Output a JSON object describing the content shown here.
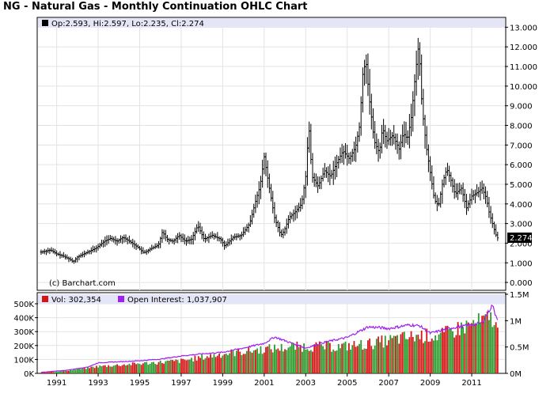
{
  "title": "NG - Natural Gas - Monthly Continuation OHLC Chart",
  "price_info": "Op:2.593, Hi:2.597, Lo:2.235, Cl:2.274",
  "last_close_label": "2.274",
  "credit": "(c) Barchart.com",
  "volume_info": "Vol: 302,354",
  "oi_info": "Open Interest: 1,037,907",
  "colors": {
    "background": "#ffffff",
    "info_bar": "#e4e6f8",
    "grid": "#e3e3e3",
    "price_bar": "#000000",
    "volume_up": "#2a9a2a",
    "volume_down": "#d21515",
    "open_interest": "#a020f0",
    "vol_marker": "#d21515",
    "oi_marker": "#a020f0"
  },
  "chart_data": [
    {
      "type": "ohlc",
      "title": "NG - Natural Gas - Monthly Continuation OHLC Chart",
      "y_ticks": [
        "0.000",
        "1.000",
        "2.000",
        "3.000",
        "4.000",
        "5.000",
        "6.000",
        "7.000",
        "8.000",
        "9.000",
        "10.000",
        "11.000",
        "12.000",
        "13.000"
      ],
      "ylim": [
        -0.4,
        13.5
      ],
      "x_ticks": [
        "1991",
        "1993",
        "1995",
        "1997",
        "1999",
        "2001",
        "2003",
        "2005",
        "2007",
        "2009",
        "2011"
      ],
      "xlim": [
        1990.1,
        2012.6
      ],
      "last_close": 2.274,
      "grid": true,
      "series": [
        {
          "anchors_year_close": [
            [
              1990.25,
              1.55
            ],
            [
              1990.7,
              1.65
            ],
            [
              1991.0,
              1.45
            ],
            [
              1991.3,
              1.35
            ],
            [
              1991.6,
              1.2
            ],
            [
              1991.8,
              1.05
            ],
            [
              1992.0,
              1.3
            ],
            [
              1992.5,
              1.55
            ],
            [
              1992.9,
              1.75
            ],
            [
              1993.3,
              2.1
            ],
            [
              1993.6,
              2.25
            ],
            [
              1993.9,
              2.1
            ],
            [
              1994.2,
              2.3
            ],
            [
              1994.5,
              2.1
            ],
            [
              1994.9,
              1.8
            ],
            [
              1995.2,
              1.5
            ],
            [
              1995.5,
              1.7
            ],
            [
              1995.9,
              1.9
            ],
            [
              1996.1,
              2.6
            ],
            [
              1996.3,
              2.2
            ],
            [
              1996.6,
              2.1
            ],
            [
              1996.9,
              2.4
            ],
            [
              1997.2,
              2.1
            ],
            [
              1997.5,
              2.2
            ],
            [
              1997.8,
              2.9
            ],
            [
              1998.1,
              2.2
            ],
            [
              1998.5,
              2.4
            ],
            [
              1998.9,
              2.2
            ],
            [
              1999.1,
              1.85
            ],
            [
              1999.5,
              2.3
            ],
            [
              1999.9,
              2.4
            ],
            [
              2000.3,
              3.0
            ],
            [
              2000.6,
              4.2
            ],
            [
              2000.8,
              4.9
            ],
            [
              2001.0,
              6.4
            ],
            [
              2001.2,
              5.1
            ],
            [
              2001.5,
              3.3
            ],
            [
              2001.8,
              2.4
            ],
            [
              2001.95,
              2.6
            ],
            [
              2002.2,
              3.3
            ],
            [
              2002.5,
              3.6
            ],
            [
              2002.8,
              4.0
            ],
            [
              2003.0,
              5.4
            ],
            [
              2003.15,
              8.0
            ],
            [
              2003.3,
              5.4
            ],
            [
              2003.6,
              4.9
            ],
            [
              2003.9,
              5.7
            ],
            [
              2004.2,
              5.4
            ],
            [
              2004.5,
              6.1
            ],
            [
              2004.8,
              6.7
            ],
            [
              2005.1,
              6.3
            ],
            [
              2005.4,
              6.9
            ],
            [
              2005.6,
              8.0
            ],
            [
              2005.75,
              10.6
            ],
            [
              2005.9,
              11.3
            ],
            [
              2006.05,
              9.5
            ],
            [
              2006.3,
              7.2
            ],
            [
              2006.55,
              6.6
            ],
            [
              2006.7,
              7.9
            ],
            [
              2006.9,
              7.2
            ],
            [
              2007.2,
              7.5
            ],
            [
              2007.5,
              6.8
            ],
            [
              2007.7,
              7.6
            ],
            [
              2007.9,
              7.3
            ],
            [
              2008.1,
              8.5
            ],
            [
              2008.3,
              10.8
            ],
            [
              2008.45,
              12.2
            ],
            [
              2008.6,
              9.0
            ],
            [
              2008.8,
              7.0
            ],
            [
              2009.0,
              5.6
            ],
            [
              2009.2,
              4.2
            ],
            [
              2009.4,
              3.9
            ],
            [
              2009.6,
              5.1
            ],
            [
              2009.8,
              5.8
            ],
            [
              2010.0,
              5.2
            ],
            [
              2010.2,
              4.5
            ],
            [
              2010.5,
              4.8
            ],
            [
              2010.75,
              3.8
            ],
            [
              2011.0,
              4.4
            ],
            [
              2011.3,
              4.6
            ],
            [
              2011.5,
              4.8
            ],
            [
              2011.7,
              4.3
            ],
            [
              2011.85,
              3.5
            ],
            [
              2012.0,
              3.0
            ],
            [
              2012.15,
              2.45
            ],
            [
              2012.25,
              2.27
            ]
          ]
        }
      ]
    },
    {
      "type": "bar+line",
      "y_ticks_left": [
        "0K",
        "100K",
        "200K",
        "300K",
        "400K",
        "500K"
      ],
      "ylim_left": [
        0,
        500000
      ],
      "y_ticks_right": [
        "0M",
        "0.5M",
        "1M",
        "1.5M"
      ],
      "ylim_right": [
        0,
        1500000
      ],
      "xlim": [
        1990.1,
        2012.6
      ],
      "last_volume": 302354,
      "last_open_interest": 1037907,
      "series": [
        {
          "name": "Vol",
          "anchors_year_volume": [
            [
              1990.25,
              5000
            ],
            [
              1991.5,
              20000
            ],
            [
              1993.0,
              50000
            ],
            [
              1995.0,
              70000
            ],
            [
              1997.0,
              90000
            ],
            [
              1999.0,
              140000
            ],
            [
              2001.0,
              175000
            ],
            [
              2003.0,
              195000
            ],
            [
              2004.5,
              190000
            ],
            [
              2006.0,
              210000
            ],
            [
              2007.5,
              250000
            ],
            [
              2008.5,
              270000
            ],
            [
              2009.5,
              270000
            ],
            [
              2010.5,
              330000
            ],
            [
              2011.5,
              370000
            ],
            [
              2012.0,
              400000
            ],
            [
              2012.25,
              302354
            ]
          ]
        },
        {
          "name": "Open Interest",
          "anchors_year_oi": [
            [
              1990.25,
              20000
            ],
            [
              1991.5,
              60000
            ],
            [
              1992.5,
              120000
            ],
            [
              1993.0,
              200000
            ],
            [
              1994.0,
              220000
            ],
            [
              1995.0,
              240000
            ],
            [
              1996.0,
              270000
            ],
            [
              1997.0,
              330000
            ],
            [
              1998.0,
              370000
            ],
            [
              1999.0,
              400000
            ],
            [
              2000.0,
              480000
            ],
            [
              2001.0,
              570000
            ],
            [
              2001.5,
              690000
            ],
            [
              2002.0,
              620000
            ],
            [
              2003.0,
              480000
            ],
            [
              2004.0,
              600000
            ],
            [
              2005.0,
              680000
            ],
            [
              2006.0,
              880000
            ],
            [
              2006.5,
              870000
            ],
            [
              2007.0,
              850000
            ],
            [
              2008.0,
              920000
            ],
            [
              2008.5,
              900000
            ],
            [
              2009.0,
              760000
            ],
            [
              2010.0,
              860000
            ],
            [
              2011.0,
              920000
            ],
            [
              2011.5,
              960000
            ],
            [
              2012.0,
              1300000
            ],
            [
              2012.1,
              1150000
            ],
            [
              2012.25,
              1037907
            ]
          ]
        }
      ]
    }
  ]
}
